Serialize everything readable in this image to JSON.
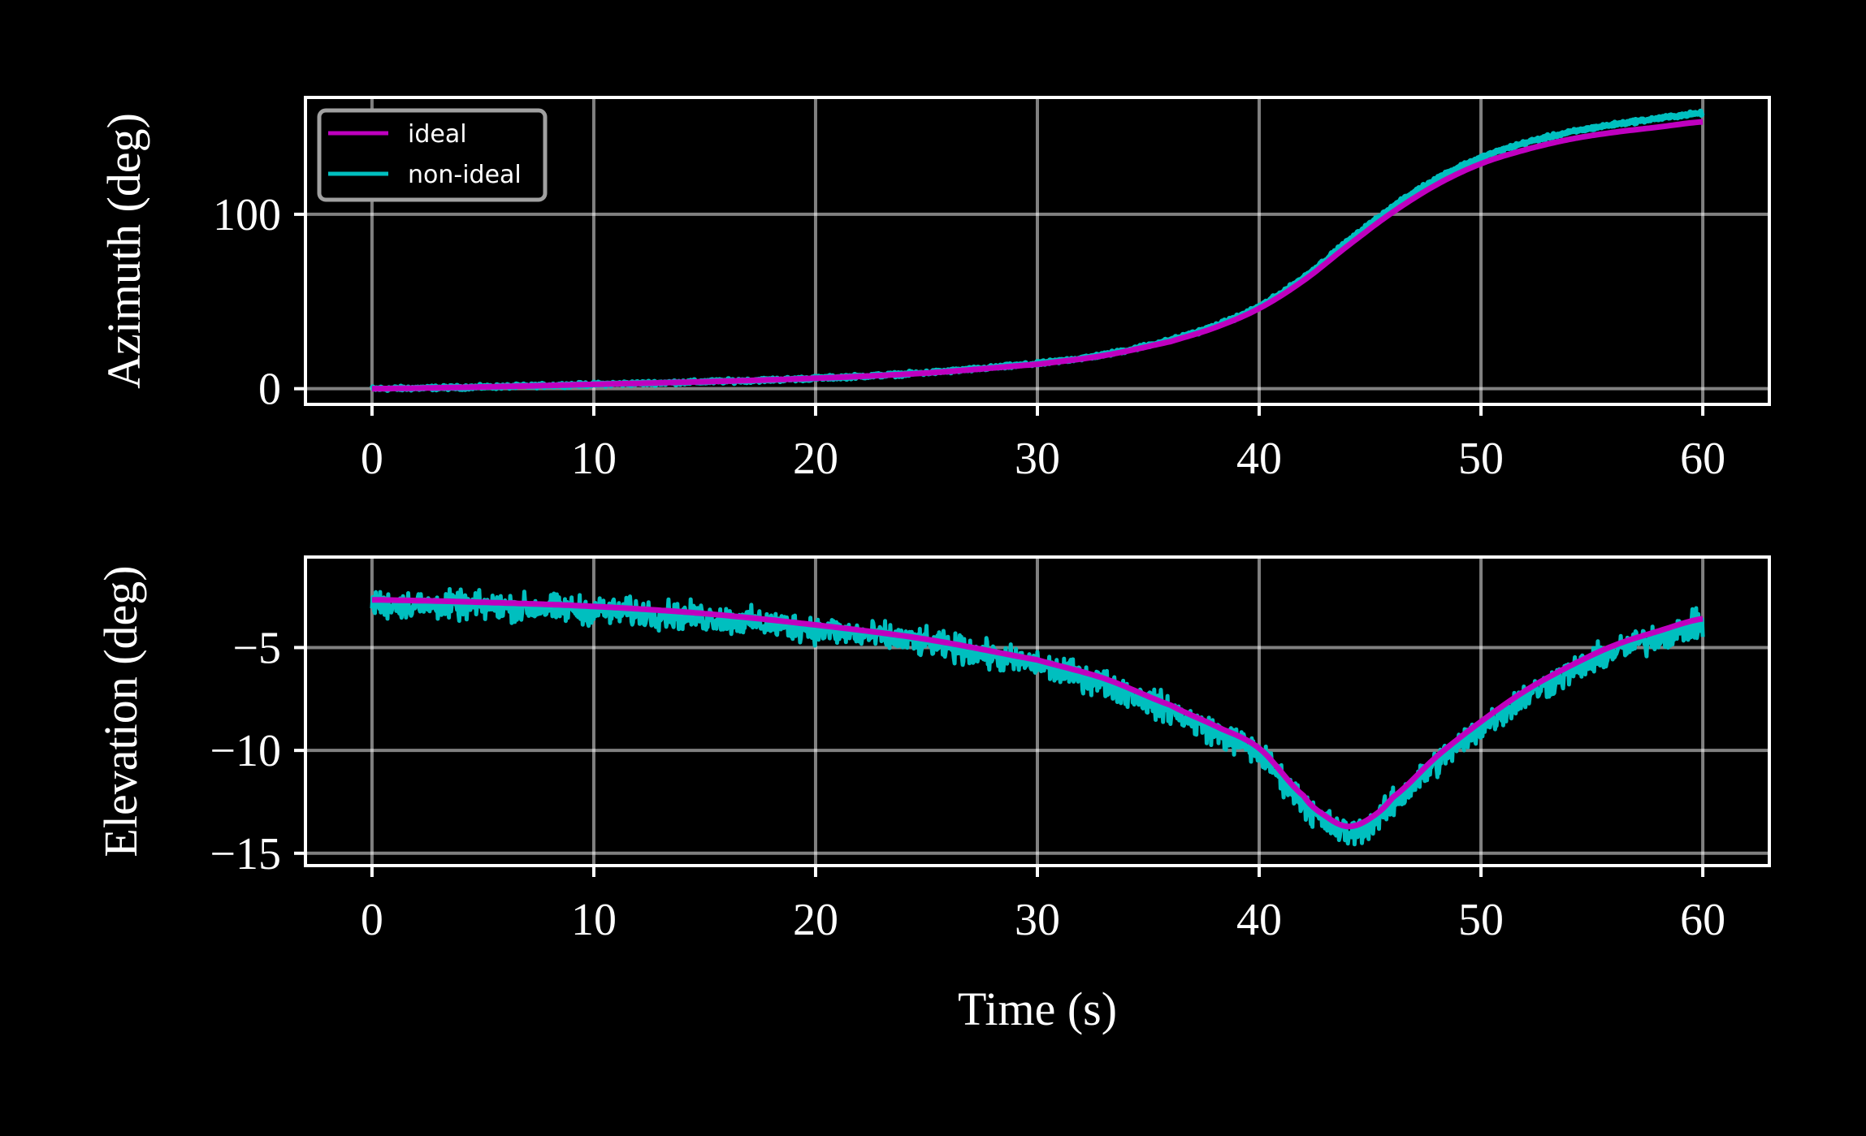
{
  "chart_data": [
    {
      "type": "line",
      "ylabel": "Azimuth (deg)",
      "xlabel": "",
      "xlim": [
        -3,
        63
      ],
      "ylim": [
        -9,
        167
      ],
      "xticks": [
        0,
        10,
        20,
        30,
        40,
        50,
        60
      ],
      "xtick_labels": [
        "0",
        "10",
        "20",
        "30",
        "40",
        "50",
        "60"
      ],
      "yticks": [
        0,
        100
      ],
      "ytick_labels": [
        "0",
        "100"
      ],
      "grid": true,
      "legend": {
        "placement": "top-left",
        "entries": [
          "ideal",
          "non-ideal"
        ]
      },
      "x": [
        0,
        5,
        10,
        15,
        20,
        25,
        30,
        33,
        36,
        38,
        40,
        42,
        44,
        46,
        48,
        50,
        52,
        54,
        56,
        58,
        60
      ],
      "series": [
        {
          "name": "ideal",
          "color": "#bf00bf",
          "values": [
            0,
            1,
            2.5,
            4,
            6,
            9,
            14,
            19,
            27,
            35,
            46,
            62,
            82,
            101,
            117,
            129,
            137,
            143,
            147,
            150,
            153
          ],
          "noise_amplitude": 0
        },
        {
          "name": "non-ideal",
          "color": "#00bfbf",
          "values": [
            0,
            1,
            2.5,
            4,
            6,
            9.2,
            14.3,
            19.5,
            27.8,
            36,
            47.2,
            63.8,
            84.5,
            104,
            120.5,
            132.5,
            141,
            147,
            151.5,
            155,
            158
          ],
          "noise_amplitude": 0.8
        }
      ]
    },
    {
      "type": "line",
      "ylabel": "Elevation (deg)",
      "xlabel": "Time (s)",
      "xlim": [
        -3,
        63
      ],
      "ylim": [
        -15.6,
        -0.6
      ],
      "xticks": [
        0,
        10,
        20,
        30,
        40,
        50,
        60
      ],
      "xtick_labels": [
        "0",
        "10",
        "20",
        "30",
        "40",
        "50",
        "60"
      ],
      "yticks": [
        -5,
        -10,
        -15
      ],
      "ytick_labels": [
        "−5",
        "−10",
        "−15"
      ],
      "grid": true,
      "x": [
        0,
        5,
        10,
        15,
        20,
        25,
        30,
        33,
        36,
        38,
        40,
        42,
        43,
        44,
        45,
        46,
        48,
        50,
        52,
        54,
        56,
        58,
        60
      ],
      "series": [
        {
          "name": "ideal",
          "color": "#bf00bf",
          "values": [
            -2.68,
            -2.8,
            -3.0,
            -3.35,
            -3.9,
            -4.6,
            -5.6,
            -6.5,
            -7.8,
            -8.8,
            -9.9,
            -12.2,
            -13.2,
            -13.7,
            -13.3,
            -12.3,
            -10.3,
            -8.6,
            -7.1,
            -5.9,
            -4.9,
            -4.2,
            -3.6
          ],
          "noise_amplitude": 0
        },
        {
          "name": "non-ideal",
          "color": "#00bfbf",
          "values": [
            -2.9,
            -3.0,
            -3.2,
            -3.55,
            -4.1,
            -4.8,
            -5.85,
            -6.75,
            -8.05,
            -9.1,
            -10.2,
            -12.5,
            -13.5,
            -14.0,
            -13.6,
            -12.6,
            -10.6,
            -8.9,
            -7.4,
            -6.2,
            -5.2,
            -4.5,
            -3.9
          ],
          "noise_amplitude": 0.55
        }
      ]
    }
  ]
}
